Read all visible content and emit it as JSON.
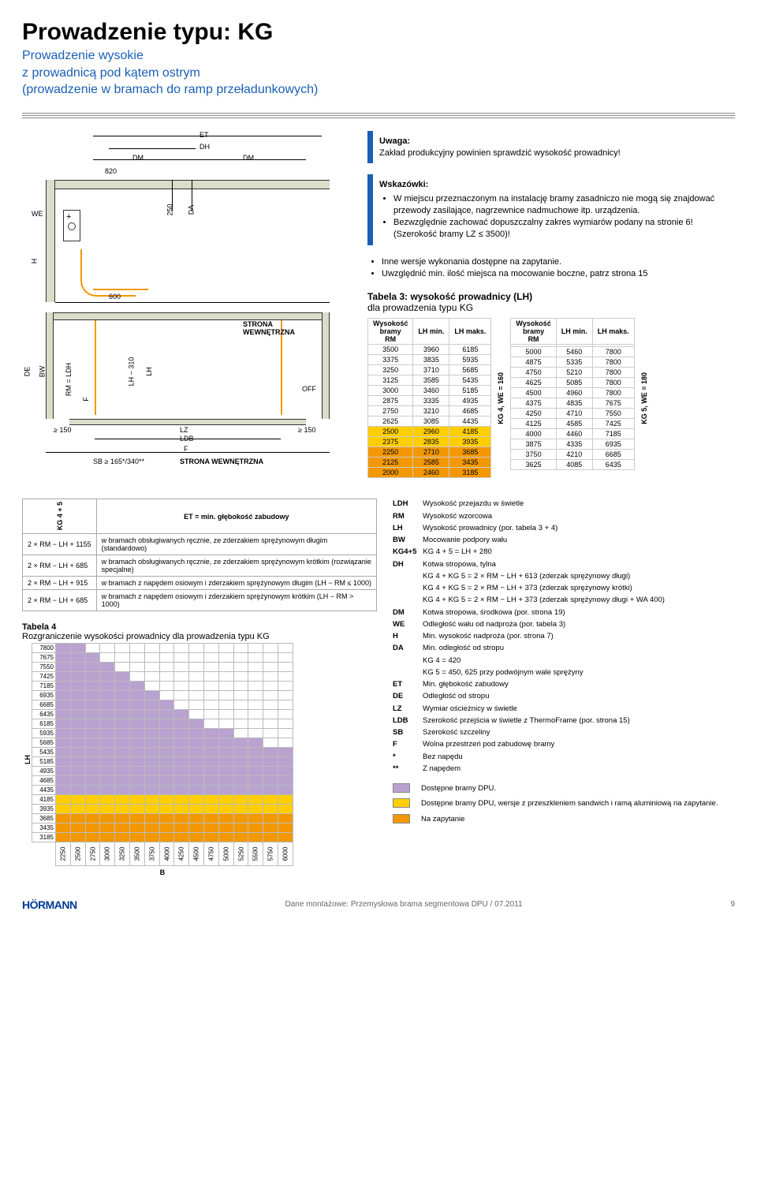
{
  "title": "Prowadzenie typu: KG",
  "subtitle_line1": "Prowadzenie wysokie",
  "subtitle_line2": "z prowadnicą pod kątem ostrym",
  "subtitle_line3": "(prowadzenie w bramach do ramp przeładunkowych)",
  "diagram": {
    "labels": {
      "ET": "ET",
      "DH": "DH",
      "DM1": "DM",
      "DM2": "DM",
      "820": "820",
      "250": "250",
      "DA": "DA",
      "WE": "WE",
      "H": "H",
      "600": "600",
      "LH310": "LH − 310",
      "LH": "LH",
      "DE": "DE",
      "BW": "BW",
      "RM_LDH": "RM = LDH",
      "F1": "F",
      "F2": "F",
      "OFF": "OFF",
      "ge150a": "≥ 150",
      "ge150b": "≥ 150",
      "LZ": "LZ",
      "LDB": "LDB",
      "SB": "SB ≥ 165*/340**",
      "inside_top": "STRONA\nWEWNĘTRZNA",
      "inside_bot": "STRONA WEWNĘTRZNA"
    }
  },
  "uwaga": {
    "label": "Uwaga:",
    "text": "Zakład produkcyjny powinien sprawdzić wysokość prowadnicy!"
  },
  "wskazowki": {
    "label": "Wskazówki:",
    "items": [
      "W miejscu przeznaczonym na instalację bramy zasadniczo nie mogą się znajdować przewody zasilające, nagrzewnice nadmuchowe itp. urządzenia.",
      "Bezwzględnie zachować dopuszczalny zakres wymiarów podany na stronie 6! (Szerokość bramy LZ ≤ 3500)!"
    ]
  },
  "extra_bullets": [
    "Inne wersje wykonania dostępne na zapytanie.",
    "Uwzględnić min. ilość miejsca na mocowanie boczne, patrz strona 15"
  ],
  "table3": {
    "title_a": "Tabela 3: wysokość prowadnicy (LH)",
    "title_b": "dla prowadzenia typu KG",
    "head": {
      "c1": "Wysokość\nbramy\nRM",
      "c2": "LH min.",
      "c3": "LH maks."
    },
    "set1": {
      "side": "KG 4, WE = 160",
      "rows": [
        [
          "3500",
          "3960",
          "6185",
          ""
        ],
        [
          "3375",
          "3835",
          "5935",
          ""
        ],
        [
          "3250",
          "3710",
          "5685",
          ""
        ],
        [
          "3125",
          "3585",
          "5435",
          ""
        ],
        [
          "3000",
          "3460",
          "5185",
          ""
        ],
        [
          "2875",
          "3335",
          "4935",
          ""
        ],
        [
          "2750",
          "3210",
          "4685",
          ""
        ],
        [
          "2625",
          "3085",
          "4435",
          ""
        ],
        [
          "2500",
          "2960",
          "4185",
          "y"
        ],
        [
          "2375",
          "2835",
          "3935",
          "y"
        ],
        [
          "2250",
          "2710",
          "3685",
          "o"
        ],
        [
          "2125",
          "2585",
          "3435",
          "o"
        ],
        [
          "2000",
          "2460",
          "3185",
          "o"
        ]
      ]
    },
    "set2": {
      "side": "KG 5, WE = 180",
      "rows": [
        [
          "",
          "",
          ""
        ],
        [
          "5000",
          "5460",
          "7800"
        ],
        [
          "4875",
          "5335",
          "7800"
        ],
        [
          "4750",
          "5210",
          "7800"
        ],
        [
          "4625",
          "5085",
          "7800"
        ],
        [
          "4500",
          "4960",
          "7800"
        ],
        [
          "4375",
          "4835",
          "7675"
        ],
        [
          "4250",
          "4710",
          "7550"
        ],
        [
          "4125",
          "4585",
          "7425"
        ],
        [
          "4000",
          "4460",
          "7185"
        ],
        [
          "3875",
          "4335",
          "6935"
        ],
        [
          "3750",
          "4210",
          "6685"
        ],
        [
          "3625",
          "4085",
          "6435"
        ]
      ]
    }
  },
  "et_table": {
    "title": "ET = min. głębokość zabudowy",
    "side": "KG 4 + 5",
    "rows": [
      {
        "k": "2 × RM − LH + 1155",
        "v": "w bramach obsługiwanych ręcznie, ze zderzakiem sprężynowym długim (standardowo)"
      },
      {
        "k": "2 × RM − LH + 685",
        "v": "w bramach obsługiwanych ręcznie, ze zderzakiem sprężynowym krótkim (rozwiązanie specjalne)"
      },
      {
        "k": "2 × RM − LH + 915",
        "v": "w bramach z napędem osiowym i zderzakiem sprężynowym długim (LH − RM ≤ 1000)"
      },
      {
        "k": "2 × RM − LH + 685",
        "v": "w bramach z napędem osiowym i zderzakiem sprężynowym krótkim (LH − RM > 1000)"
      }
    ]
  },
  "legend": [
    {
      "k": "LDH",
      "v": "Wysokość przejazdu w świetle"
    },
    {
      "k": "RM",
      "v": "Wysokość wzorcowa"
    },
    {
      "k": "LH",
      "v": "Wysokość prowadnicy (por. tabela 3 + 4)"
    },
    {
      "k": "BW",
      "v": "Mocowanie podpory wału"
    },
    {
      "k": "KG4+5",
      "v": "KG 4 + 5 = LH + 280"
    },
    {
      "k": "DH",
      "v": "Kotwa stropowa, tylna"
    },
    {
      "k": "",
      "v": "KG 4 + KG 5 = 2 × RM − LH + 613 (zderzak sprężynowy długi)"
    },
    {
      "k": "",
      "v": "KG 4 + KG 5 = 2 × RM − LH + 373 (zderzak sprężynowy krótki)"
    },
    {
      "k": "",
      "v": "KG 4 + KG 5 = 2 × RM − LH + 373 (zderzak sprężynowy długi + WA 400)"
    },
    {
      "k": "DM",
      "v": "Kotwa stropowa, środkowa (por. strona 19)"
    },
    {
      "k": "WE",
      "v": "Odległość wału od nadproża (por. tabela 3)"
    },
    {
      "k": "H",
      "v": "Min. wysokość nadproża (por. strona 7)"
    },
    {
      "k": "DA",
      "v": "Min. odległość od stropu"
    },
    {
      "k": "",
      "v": "KG 4 = 420"
    },
    {
      "k": "",
      "v": "KG 5 = 450, 625 przy podwójnym wale sprężyny"
    },
    {
      "k": "ET",
      "v": "Min. głębokość zabudowy"
    },
    {
      "k": "DE",
      "v": "Odległość od stropu"
    },
    {
      "k": "LZ",
      "v": "Wymiar ościeżnicy w świetle"
    },
    {
      "k": "LDB",
      "v": "Szerokość przejścia w świetle z ThermoFrame (por. strona 15)"
    },
    {
      "k": "SB",
      "v": "Szerokość szczeliny"
    },
    {
      "k": "F",
      "v": "Wolna przestrzeń pod zabudowę bramy"
    },
    {
      "k": "*",
      "v": "Bez napędu"
    },
    {
      "k": "**",
      "v": "Z napędem"
    }
  ],
  "legend_swatches": [
    {
      "c": "#b9a2cf",
      "t": "Dostępne bramy DPU."
    },
    {
      "c": "#ffce00",
      "t": "Dostępne bramy DPU, wersje z przeszkleniem sandwich i ramą aluminiową na zapytanie."
    },
    {
      "c": "#f39800",
      "t": "Na zapytanie"
    }
  ],
  "table4": {
    "title1": "Tabela 4",
    "title2": "Rozgraniczenie wysokości prowadnicy dla prowadzenia typu KG",
    "ylabel": "LH",
    "xlabel": "B",
    "yvals": [
      "7800",
      "7675",
      "7550",
      "7425",
      "7185",
      "6935",
      "6685",
      "6435",
      "6185",
      "5935",
      "5685",
      "5435",
      "5185",
      "4935",
      "4685",
      "4435",
      "4185",
      "3935",
      "3685",
      "3435",
      "3185"
    ],
    "xvals": [
      "2250",
      "2500",
      "2750",
      "3000",
      "3250",
      "3500",
      "3750",
      "4000",
      "4250",
      "4500",
      "4750",
      "5000",
      "5250",
      "5500",
      "5750",
      "6000"
    ],
    "matrix": [
      "vv..............",
      "vvv.............",
      "vvvv............",
      "vvvvv...........",
      "vvvvvv..........",
      "vvvvvvv.........",
      "vvvvvvvv........",
      "vvvvvvvvv.......",
      "vvvvvvvvvv......",
      "vvvvvvvvvvvv....",
      "vvvvvvvvvvvvvv..",
      "vvvvvvvvvvvvvvvv",
      "vvvvvvvvvvvvvvvv",
      "vvvvvvvvvvvvvvvv",
      "vvvvvvvvvvvvvvvv",
      "vvvvvvvvvvvvvvvv",
      "yyyyyyyyyyyyyyyy",
      "yyyyyyyyyyyyyyyy",
      "oooooooooooooooo",
      "oooooooooooooooo",
      "oooooooooooooooo"
    ]
  },
  "footer": {
    "logo": "HÖRMANN",
    "text": "Dane montażowe: Przemysłowa brama segmentowa DPU / 07.2011",
    "page": "9"
  }
}
